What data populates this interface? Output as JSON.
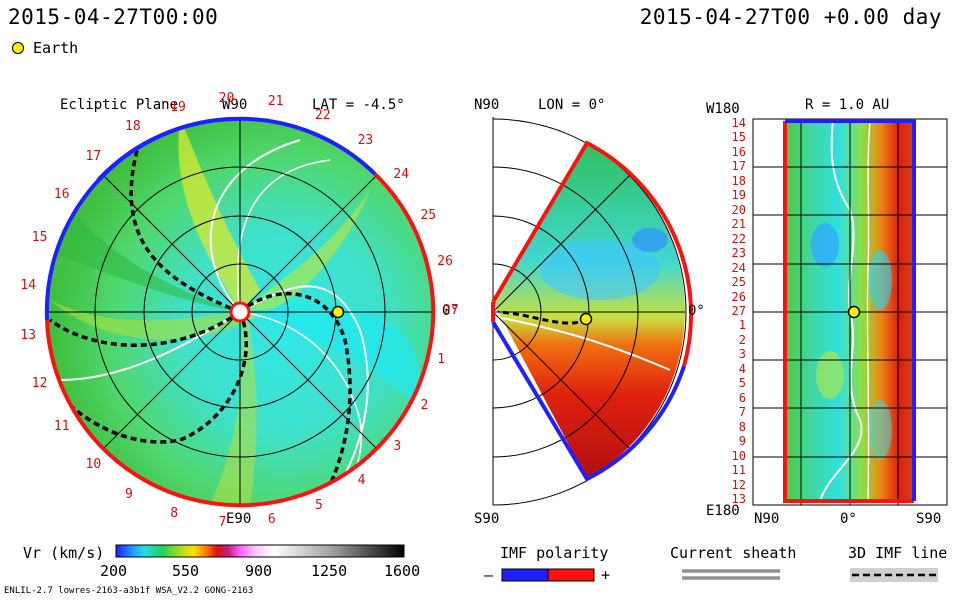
{
  "header": {
    "left_time": "2015-04-27T00:00",
    "right_time": "2015-04-27T00 +0.00 day"
  },
  "legend": {
    "earth_label": "Earth"
  },
  "ecliptic": {
    "title": "Ecliptic Plane",
    "lat_label": "LAT = -4.5°",
    "top_label": "W90",
    "bottom_label": "E90",
    "right_label": "0°",
    "carrington_numbers": [
      "1",
      "2",
      "3",
      "4",
      "5",
      "6",
      "7",
      "8",
      "9",
      "10",
      "11",
      "12",
      "13",
      "14",
      "15",
      "16",
      "17",
      "18",
      "19",
      "20",
      "21",
      "22",
      "23",
      "24",
      "25",
      "26",
      "27"
    ]
  },
  "meridional": {
    "top_label": "N90",
    "lon_label": "LON = 0°",
    "bottom_label": "S90",
    "right_label": "0°"
  },
  "radial": {
    "title": "R = 1.0 AU",
    "top_label": "W180",
    "bottom_label": "E180",
    "x_labels": [
      "N90",
      "0°",
      "S90"
    ],
    "row_labels": [
      "14",
      "15",
      "16",
      "17",
      "18",
      "19",
      "20",
      "21",
      "22",
      "23",
      "24",
      "25",
      "26",
      "27",
      "1",
      "2",
      "3",
      "4",
      "5",
      "6",
      "7",
      "8",
      "9",
      "10",
      "11",
      "12",
      "13"
    ]
  },
  "colorbar": {
    "label": "Vr (km/s)",
    "ticks": [
      "200",
      "550",
      "900",
      "1250",
      "1600"
    ]
  },
  "imf": {
    "title": "IMF polarity",
    "minus": "–",
    "plus": "+"
  },
  "sheath": {
    "title": "Current sheath"
  },
  "imf3d": {
    "title": "3D IMF line"
  },
  "footer": {
    "model_info": "ENLIL-2.7 lowres-2163-a3b1f WSA_V2.2 GONG-2163"
  },
  "colors": {
    "positive": "#ff1010",
    "negative": "#1010ff",
    "label_red": "#d01010"
  }
}
